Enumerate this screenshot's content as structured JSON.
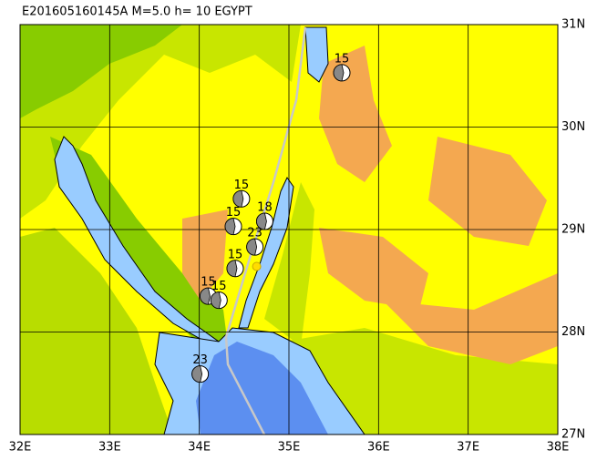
{
  "map": {
    "title": "E201605160145A M=5.0 h= 10 EGYPT",
    "xlim": [
      32,
      38
    ],
    "ylim": [
      27,
      31
    ],
    "xticks": [
      {
        "value": 32,
        "label": "32E"
      },
      {
        "value": 33,
        "label": "33E"
      },
      {
        "value": 34,
        "label": "34E"
      },
      {
        "value": 35,
        "label": "35E"
      },
      {
        "value": 36,
        "label": "36E"
      },
      {
        "value": 37,
        "label": "37E"
      },
      {
        "value": 38,
        "label": "38E"
      }
    ],
    "yticks": [
      {
        "value": 27,
        "label": "27N"
      },
      {
        "value": 28,
        "label": "28N"
      },
      {
        "value": 29,
        "label": "29N"
      },
      {
        "value": 30,
        "label": "30N"
      },
      {
        "value": 31,
        "label": "31N"
      }
    ],
    "events": [
      {
        "label": "15",
        "lon": 35.59,
        "lat": 30.53
      },
      {
        "label": "15",
        "lon": 34.47,
        "lat": 29.3
      },
      {
        "label": "18",
        "lon": 34.73,
        "lat": 29.08
      },
      {
        "label": "15",
        "lon": 34.38,
        "lat": 29.03
      },
      {
        "label": "23",
        "lon": 34.62,
        "lat": 28.83
      },
      {
        "label": "15",
        "lon": 34.4,
        "lat": 28.62
      },
      {
        "label": "15",
        "lon": 34.1,
        "lat": 28.35
      },
      {
        "label": "15",
        "lon": 34.22,
        "lat": 28.31
      },
      {
        "label": "23",
        "lon": 34.01,
        "lat": 27.59
      }
    ],
    "epicenter": {
      "lon": 34.64,
      "lat": 28.64
    }
  }
}
